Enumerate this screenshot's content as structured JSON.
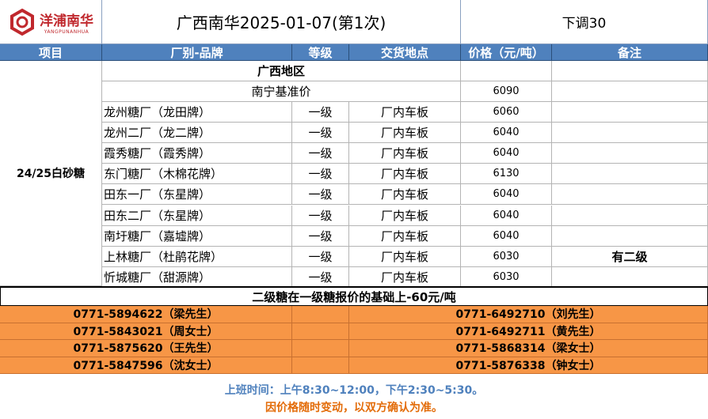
{
  "logo": {
    "cn": "洋浦南华",
    "en": "YANGPUNANHUA"
  },
  "title": "广西南华2025-01-07(第1次)",
  "adjust": "下调30",
  "headers": [
    "项目",
    "厂别-品牌",
    "等级",
    "交货地点",
    "价格（元/吨）",
    "备注"
  ],
  "item": "24/25白砂糖",
  "region": "广西地区",
  "base": {
    "label": "南宁基准价",
    "price": "6090"
  },
  "rows": [
    {
      "brand": "龙州糖厂（龙田牌）",
      "grade": "一级",
      "place": "厂内车板",
      "price": "6060",
      "note": ""
    },
    {
      "brand": "龙州二厂（龙二牌）",
      "grade": "一级",
      "place": "厂内车板",
      "price": "6040",
      "note": ""
    },
    {
      "brand": "霞秀糖厂（霞秀牌）",
      "grade": "一级",
      "place": "厂内车板",
      "price": "6040",
      "note": ""
    },
    {
      "brand": "东门糖厂（木棉花牌）",
      "grade": "一级",
      "place": "厂内车板",
      "price": "6130",
      "note": ""
    },
    {
      "brand": "田东一厂（东星牌）",
      "grade": "一级",
      "place": "厂内车板",
      "price": "6040",
      "note": ""
    },
    {
      "brand": "田东二厂（东星牌）",
      "grade": "一级",
      "place": "厂内车板",
      "price": "6040",
      "note": ""
    },
    {
      "brand": "南圩糖厂（嘉墟牌）",
      "grade": "一级",
      "place": "厂内车板",
      "price": "6040",
      "note": ""
    },
    {
      "brand": "上林糖厂（杜鹃花牌）",
      "grade": "一级",
      "place": "厂内车板",
      "price": "6030",
      "note": "有二级"
    },
    {
      "brand": "忻城糖厂（甜源牌）",
      "grade": "一级",
      "place": "厂内车板",
      "price": "6030",
      "note": ""
    }
  ],
  "second_note": "二级糖在一级糖报价的基础上-60元/吨",
  "contacts": [
    [
      "0771-5894622（梁先生）",
      "0771-6492710（刘先生）"
    ],
    [
      "0771-5843021（周女士）",
      "0771-6492711（黄先生）"
    ],
    [
      "0771-5875620（王先生）",
      "0771-5868314（梁女士）"
    ],
    [
      "0771-5847596（沈女士）",
      "0771-5876338（钟女士）"
    ]
  ],
  "footer": {
    "hours": "上班时间：上午8:30~12:00，下午2:30~5:30。",
    "disclaimer": "因价格随时变动，以双方确认为准。"
  },
  "colors": {
    "header": "#4f81bd",
    "contact": "#f79646",
    "hours": "#4f81bd",
    "disclaimer": "#e36c09",
    "logo": "#c0282d"
  }
}
